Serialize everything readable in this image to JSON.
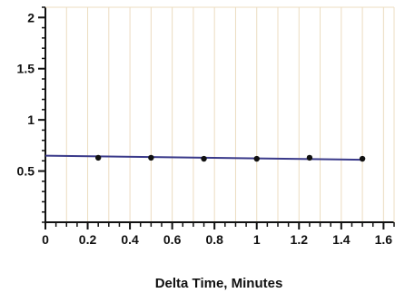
{
  "chart_data": {
    "type": "line",
    "title": "",
    "xlabel": "Delta Time, Minutes",
    "ylabel": "",
    "xlim": [
      0,
      1.65
    ],
    "ylim": [
      0,
      2.1
    ],
    "x_ticks": [
      0,
      0.2,
      0.4,
      0.6,
      0.8,
      1,
      1.2,
      1.4,
      1.6
    ],
    "x_tick_labels": [
      "0",
      "0.2",
      "0.4",
      "0.6",
      "0.8",
      "1",
      "1.2",
      "1.4",
      "1.6"
    ],
    "y_ticks": [
      0.5,
      1,
      1.5,
      2
    ],
    "y_tick_labels": [
      "0.5",
      "1",
      "1.5",
      "2"
    ],
    "grid": "vertical",
    "series": [
      {
        "x": [
          0.25,
          0.5,
          0.75,
          1.0,
          1.25,
          1.5
        ],
        "y": [
          0.63,
          0.63,
          0.62,
          0.62,
          0.63,
          0.62
        ]
      }
    ],
    "fit_line": {
      "x": [
        0,
        1.5
      ],
      "y": [
        0.65,
        0.61
      ]
    },
    "colors": {
      "line": "#3a3a8a",
      "marker": "#111111",
      "grid": "#ecdcc0",
      "axis": "#111111"
    }
  }
}
